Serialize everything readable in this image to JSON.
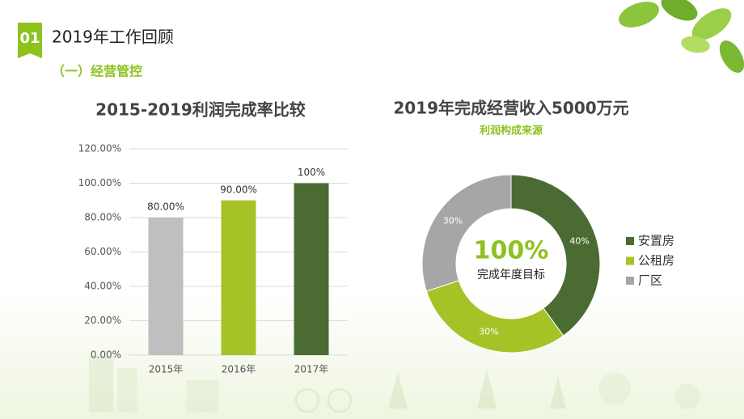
{
  "header": {
    "number": "01",
    "title": "2019年工作回顾",
    "subtitle": "（一）经营管控"
  },
  "chart_data": [
    {
      "type": "bar",
      "title": "2015-2019利润完成率比较",
      "categories": [
        "2015年",
        "2016年",
        "2017年"
      ],
      "values": [
        80,
        90,
        100
      ],
      "value_labels": [
        "80.00%",
        "90.00%",
        "100%"
      ],
      "colors": [
        "#bfbfbf",
        "#a5c327",
        "#4a6b32"
      ],
      "ylim": [
        0,
        120
      ],
      "yticks": [
        {
          "value": 0,
          "label": "0.00%"
        },
        {
          "value": 20,
          "label": "20.00%"
        },
        {
          "value": 40,
          "label": "40.00%"
        },
        {
          "value": 60,
          "label": "60.00%"
        },
        {
          "value": 80,
          "label": "80.00%"
        },
        {
          "value": 100,
          "label": "100.00%"
        },
        {
          "value": 120,
          "label": "120.00%"
        }
      ],
      "grid": true
    },
    {
      "type": "donut",
      "title": "2019年完成经营收入5000万元",
      "subtitle": "利润构成来源",
      "center_label": "100%",
      "center_sublabel": "完成年度目标",
      "categories": [
        "安置房",
        "公租房",
        "厂区"
      ],
      "values": [
        40,
        30,
        30
      ],
      "value_labels": [
        "40%",
        "30%",
        "30%"
      ],
      "colors": [
        "#4a6b32",
        "#a5c327",
        "#a6a6a6"
      ],
      "legend": "right"
    }
  ]
}
